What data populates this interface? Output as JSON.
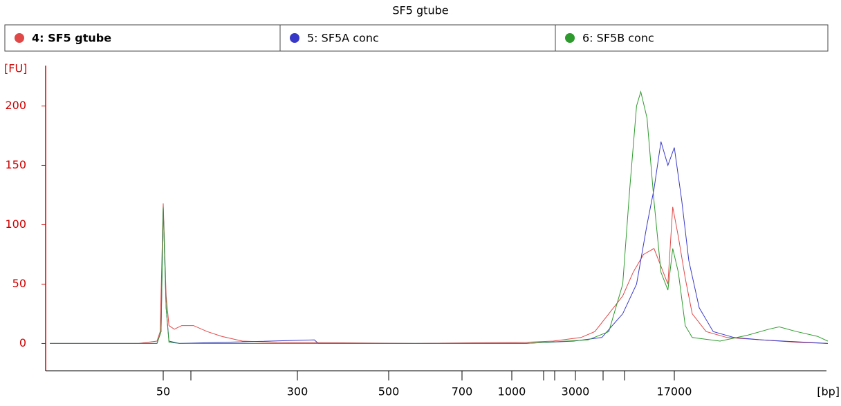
{
  "chart_data": {
    "type": "line",
    "title": "SF5 gtube",
    "x_label": "[bp]",
    "y_label": "[FU]",
    "ylim": [
      -23,
      234
    ],
    "yticks": [
      0,
      50,
      100,
      150,
      200
    ],
    "xticks": [
      50,
      300,
      500,
      700,
      1000,
      3000,
      17000
    ],
    "series": [
      {
        "name": "4: SF5 gtube",
        "color": "#e04848",
        "x": [
          11,
          36,
          46,
          48,
          50,
          52,
          54,
          58,
          64,
          75,
          90,
          109,
          144,
          228,
          564,
          1270,
          2040,
          3310,
          4220,
          5390,
          6880,
          8260,
          9910,
          11900,
          13450,
          15190,
          16540,
          18240,
          20600,
          23280,
          29700,
          42800,
          78800,
          145000,
          251000
        ],
        "values": [
          0,
          0,
          2,
          10,
          118,
          40,
          15,
          12,
          15,
          15,
          10,
          6,
          2,
          1,
          0,
          1,
          2,
          5,
          10,
          25,
          40,
          60,
          75,
          80,
          65,
          50,
          115,
          90,
          55,
          25,
          10,
          5,
          3,
          1,
          0
        ]
      },
      {
        "name": "5: SF5A conc",
        "color": "#3838c8",
        "x": [
          11,
          46,
          48.6,
          50,
          52,
          54,
          62,
          330,
          337,
          1270,
          2920,
          4770,
          6880,
          8770,
          10530,
          11900,
          13450,
          15190,
          17000,
          19380,
          21900,
          26300,
          33600,
          48400,
          78800,
          251000
        ],
        "values": [
          0,
          0,
          10,
          115,
          30,
          2,
          0,
          3,
          0,
          0,
          2,
          5,
          25,
          50,
          100,
          130,
          170,
          150,
          165,
          120,
          70,
          30,
          10,
          5,
          3,
          0
        ]
      },
      {
        "name": "6: SF5B conc",
        "color": "#2e9a2e",
        "x": [
          11,
          46,
          48.6,
          50,
          52,
          54,
          62,
          1270,
          3740,
          5390,
          6880,
          7770,
          8770,
          9440,
          10530,
          11900,
          13450,
          15190,
          16540,
          18240,
          20600,
          23280,
          37900,
          61700,
          89000,
          107000,
          145000,
          209000,
          251000
        ],
        "values": [
          0,
          0,
          10,
          115,
          30,
          1,
          0,
          0,
          3,
          10,
          50,
          130,
          200,
          212,
          190,
          120,
          60,
          45,
          80,
          60,
          15,
          5,
          2,
          7,
          12,
          14,
          10,
          6,
          2
        ]
      }
    ]
  }
}
